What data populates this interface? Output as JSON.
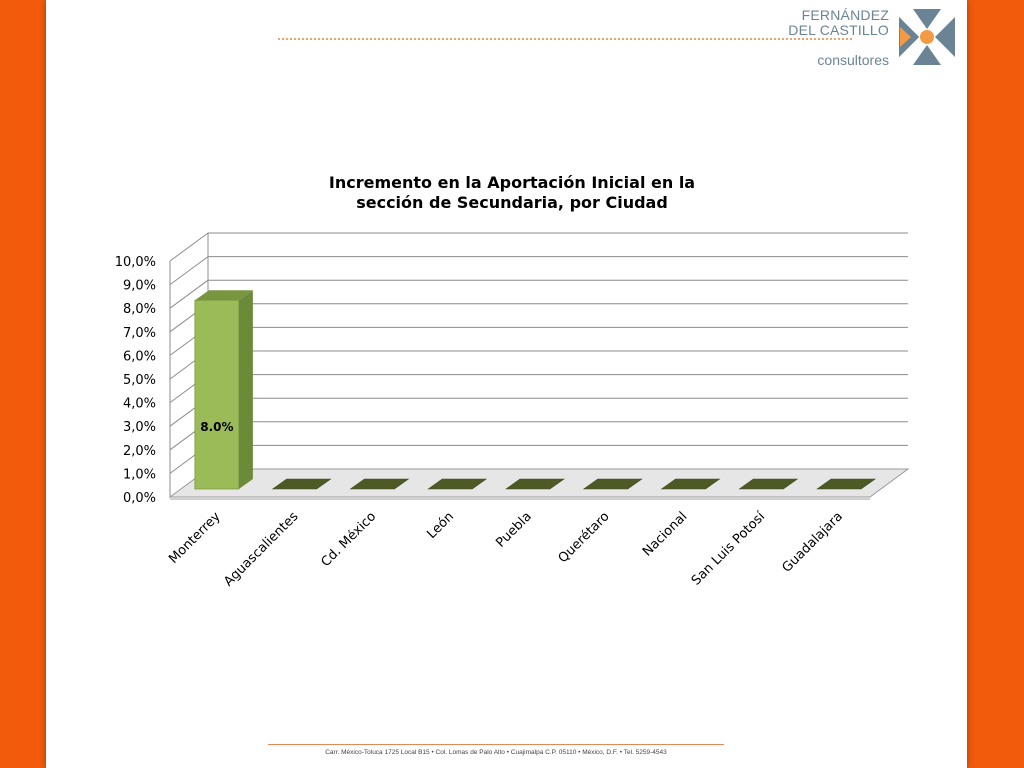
{
  "logo": {
    "line1": "FERNÁNDEZ",
    "line2": "DEL CASTILLO",
    "line3": "consultores",
    "colors": {
      "text": "#6a8496",
      "mark_blue": "#6a8496",
      "mark_orange": "#f49a45"
    }
  },
  "footer": {
    "address": "Carr. México-Toluca 1725 Local B15 • Col. Lomas de Palo Alto • Cuajimalpa C.P. 05110 • México, D.F. • Tel. 5259-4543"
  },
  "colors": {
    "background": "#f25a0c",
    "bar_front": "#9bbb59",
    "bar_side": "#6b8a3a",
    "bar_top": "#78963f",
    "empty_bar": "#4e5a26"
  },
  "chart_data": {
    "type": "bar",
    "title_lines": [
      "Incremento en la Aportación Inicial en la",
      "sección de Secundaria, por Ciudad"
    ],
    "categories": [
      "Monterrey",
      "Aguascalientes",
      "Cd. México",
      "León",
      "Puebla",
      "Querétaro",
      "Nacional",
      "San Luis Potosí",
      "Guadalajara"
    ],
    "values": [
      8.0,
      0,
      0,
      0,
      0,
      0,
      0,
      0,
      0
    ],
    "data_labels": [
      "8.0%",
      "",
      "",
      "",
      "",
      "",
      "",
      "",
      ""
    ],
    "y_ticks": [
      "0,0%",
      "1,0%",
      "2,0%",
      "3,0%",
      "4,0%",
      "5,0%",
      "6,0%",
      "7,0%",
      "8,0%",
      "9,0%",
      "10,0%"
    ],
    "ylim": [
      0,
      10
    ],
    "xlabel": "",
    "ylabel": "",
    "grid": true,
    "legend": "none",
    "style": "3d"
  }
}
